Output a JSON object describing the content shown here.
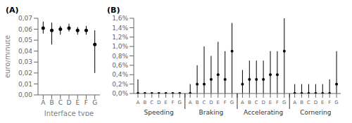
{
  "chart_data": [
    {
      "type": "scatter",
      "title": "(A)",
      "xlabel": "Interface type",
      "ylabel": "euro/minute",
      "categories": [
        "A",
        "B",
        "C",
        "D",
        "E",
        "F",
        "G"
      ],
      "values": [
        0.061,
        0.059,
        0.06,
        0.061,
        0.059,
        0.059,
        0.046
      ],
      "upper_errors": [
        0.006,
        0.007,
        0.003,
        0.004,
        0.003,
        0.004,
        0.013
      ],
      "lower_errors": [
        0.005,
        0.013,
        0.005,
        0.003,
        0.004,
        0.004,
        0.026
      ],
      "ylim": [
        0.0,
        0.07
      ],
      "yticks": [
        {
          "value": 0.0,
          "label": "0,00"
        },
        {
          "value": 0.01,
          "label": "0,01"
        },
        {
          "value": 0.02,
          "label": "0,02"
        },
        {
          "value": 0.03,
          "label": "0,03"
        },
        {
          "value": 0.04,
          "label": "0,04"
        },
        {
          "value": 0.05,
          "label": "0,05"
        },
        {
          "value": 0.06,
          "label": "0,06"
        },
        {
          "value": 0.07,
          "label": "0,07"
        }
      ],
      "color": "black"
    },
    {
      "type": "scatter",
      "title": "(B)",
      "categories": [
        "A",
        "B",
        "C",
        "D",
        "E",
        "F",
        "G"
      ],
      "groups": [
        {
          "name": "Speeding",
          "values": [
            0.0,
            0.0,
            0.0,
            0.0,
            0.0,
            0.0,
            0.0
          ],
          "upper_errors": [
            0.003,
            0.0,
            0.0,
            0.0,
            0.0,
            0.0,
            0.0
          ],
          "lower_errors": [
            0.0,
            0.0,
            0.0,
            0.0,
            0.0,
            0.0,
            0.0
          ]
        },
        {
          "name": "Braking",
          "values": [
            0.0,
            0.002,
            0.002,
            0.003,
            0.004,
            0.003,
            0.009
          ],
          "upper_errors": [
            0.002,
            0.004,
            0.008,
            0.005,
            0.007,
            0.006,
            0.006
          ],
          "lower_errors": [
            0.0,
            0.002,
            0.002,
            0.003,
            0.004,
            0.003,
            0.009
          ]
        },
        {
          "name": "Accelerating",
          "values": [
            0.002,
            0.003,
            0.003,
            0.003,
            0.004,
            0.004,
            0.009
          ],
          "upper_errors": [
            0.003,
            0.004,
            0.004,
            0.004,
            0.005,
            0.005,
            0.007
          ],
          "lower_errors": [
            0.002,
            0.003,
            0.003,
            0.003,
            0.004,
            0.004,
            0.009
          ]
        },
        {
          "name": "Cornering",
          "values": [
            0.0,
            0.0,
            0.0,
            0.0,
            0.0,
            0.0,
            0.002
          ],
          "upper_errors": [
            0.002,
            0.002,
            0.002,
            0.002,
            0.002,
            0.003,
            0.007
          ],
          "lower_errors": [
            0.0,
            0.0,
            0.0,
            0.0,
            0.0,
            0.0,
            0.002
          ]
        }
      ],
      "ylim": [
        0.0,
        0.016
      ],
      "yticks": [
        {
          "value": 0.0,
          "label": "0,0%"
        },
        {
          "value": 0.002,
          "label": "0,2%"
        },
        {
          "value": 0.004,
          "label": "0,4%"
        },
        {
          "value": 0.006,
          "label": "0,6%"
        },
        {
          "value": 0.008,
          "label": "0,8%"
        },
        {
          "value": 0.01,
          "label": "1,0%"
        },
        {
          "value": 0.012,
          "label": "1,2%"
        },
        {
          "value": 0.014,
          "label": "1,4%"
        },
        {
          "value": 0.016,
          "label": "1,6%"
        }
      ],
      "color": "black"
    }
  ]
}
